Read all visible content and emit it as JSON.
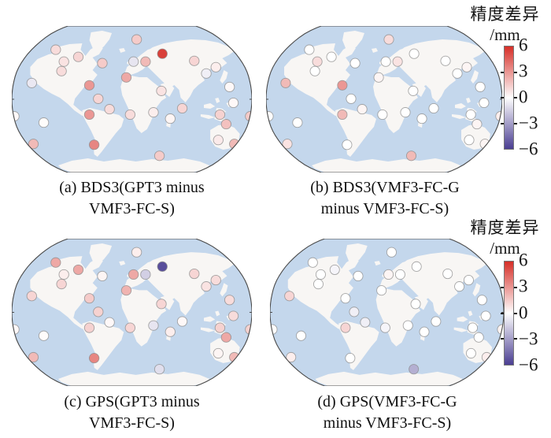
{
  "chart_data": {
    "type": "scatter",
    "subtype": "geographic-station-map",
    "projection": "robinson-world-map",
    "grid": "off",
    "map": {
      "ocean_color": "#c4d7ec",
      "land_color": "#f8f6f4",
      "outline_color": "#4a4a4a",
      "dot_stroke": "#8a8a8a",
      "dot_radius_px": 6.1
    },
    "colorbar": {
      "title": "精度差异",
      "unit": "/mm",
      "ticks": [
        "6",
        "3",
        "0",
        "−3",
        "−6"
      ],
      "tick_values": [
        6,
        3,
        0,
        -3,
        -6
      ],
      "range": [
        -6,
        6
      ],
      "legend_position": "right",
      "colors": {
        "positive": "#d62f28",
        "zero": "#ffffff",
        "negative": "#4a3e92"
      }
    },
    "stations_pct": [
      [
        52.0,
        9.2
      ],
      [
        18.3,
        16.2
      ],
      [
        27.7,
        21.1
      ],
      [
        62.7,
        18.9
      ],
      [
        55.7,
        24.3
      ],
      [
        50.7,
        24.3
      ],
      [
        76.0,
        23.8
      ],
      [
        37.7,
        25.4
      ],
      [
        21.7,
        24.3
      ],
      [
        85.0,
        28.1
      ],
      [
        20.7,
        30.8
      ],
      [
        47.7,
        35.1
      ],
      [
        81.0,
        32.4
      ],
      [
        90.7,
        41.6
      ],
      [
        8.3,
        38.9
      ],
      [
        32.3,
        40.5
      ],
      [
        62.3,
        44.3
      ],
      [
        36.0,
        49.7
      ],
      [
        92.3,
        52.4
      ],
      [
        71.0,
        56.2
      ],
      [
        40.7,
        56.8
      ],
      [
        32.3,
        60.5
      ],
      [
        49.3,
        60.5
      ],
      [
        59.0,
        58.9
      ],
      [
        66.0,
        63.2
      ],
      [
        86.7,
        60.5
      ],
      [
        99.3,
        61.6
      ],
      [
        1.0,
        61.6
      ],
      [
        13.3,
        65.9
      ],
      [
        89.3,
        67.0
      ],
      [
        9.0,
        80.5
      ],
      [
        34.3,
        81.1
      ],
      [
        86.0,
        77.8
      ],
      [
        92.7,
        80.5
      ],
      [
        61.5,
        88.6
      ]
    ],
    "panels": [
      {
        "id": "a",
        "caption_line1": "(a) BDS3(GPT3 minus",
        "caption_line2": "VMF3-FC-S)",
        "values_mm": [
          1.5,
          1.0,
          1.2,
          5.5,
          2.0,
          -0.8,
          1.2,
          1.5,
          0.8,
          0.5,
          1.0,
          2.5,
          -0.5,
          0.2,
          -0.7,
          3.0,
          0.8,
          1.2,
          0.2,
          1.2,
          1.0,
          3.0,
          1.0,
          0.5,
          0.3,
          1.3,
          1.5,
          0.2,
          0.1,
          1.8,
          2.0,
          3.5,
          0.6,
          2.0,
          1.5
        ]
      },
      {
        "id": "b",
        "caption_line1": "(b) BDS3(VMF3-FC-G",
        "caption_line2": "minus VMF3-FC-S)",
        "values_mm": [
          1.0,
          0,
          0,
          0,
          0.8,
          0,
          0,
          0,
          1.0,
          0.3,
          0,
          0.3,
          0,
          0,
          2.0,
          3.0,
          0,
          0,
          0,
          0,
          0.3,
          2.0,
          0,
          0,
          0,
          0,
          0.5,
          0,
          0,
          0.3,
          0.8,
          0,
          0,
          0.3,
          2.0
        ]
      },
      {
        "id": "c",
        "caption_line1": "(c) GPS(GPT3 minus",
        "caption_line2": "VMF3-FC-S)",
        "values_mm": [
          0.5,
          2.5,
          2.5,
          -5.5,
          -1.5,
          2.5,
          1.2,
          0.3,
          0.5,
          1.0,
          1.2,
          2.2,
          0.8,
          1.0,
          1.2,
          1.5,
          1.2,
          1.3,
          1.0,
          0.2,
          0.2,
          1.3,
          1.2,
          -0.8,
          0.5,
          1.3,
          1.3,
          0.2,
          0.1,
          2.5,
          2.0,
          3.5,
          0.3,
          2.0,
          -1.0
        ]
      },
      {
        "id": "d",
        "caption_line1": "(d) GPS(VMF3-FC-G",
        "caption_line2": "minus VMF3-FC-S)",
        "values_mm": [
          0,
          0,
          -0.3,
          0,
          0,
          0.3,
          0,
          0,
          0,
          0,
          0,
          0,
          0,
          0,
          1.2,
          0,
          0,
          -0.5,
          0,
          0,
          -0.5,
          1.2,
          -0.3,
          0,
          0,
          0,
          0.3,
          0,
          0,
          0,
          0.5,
          0,
          0,
          0.5,
          -2.5
        ]
      }
    ]
  }
}
